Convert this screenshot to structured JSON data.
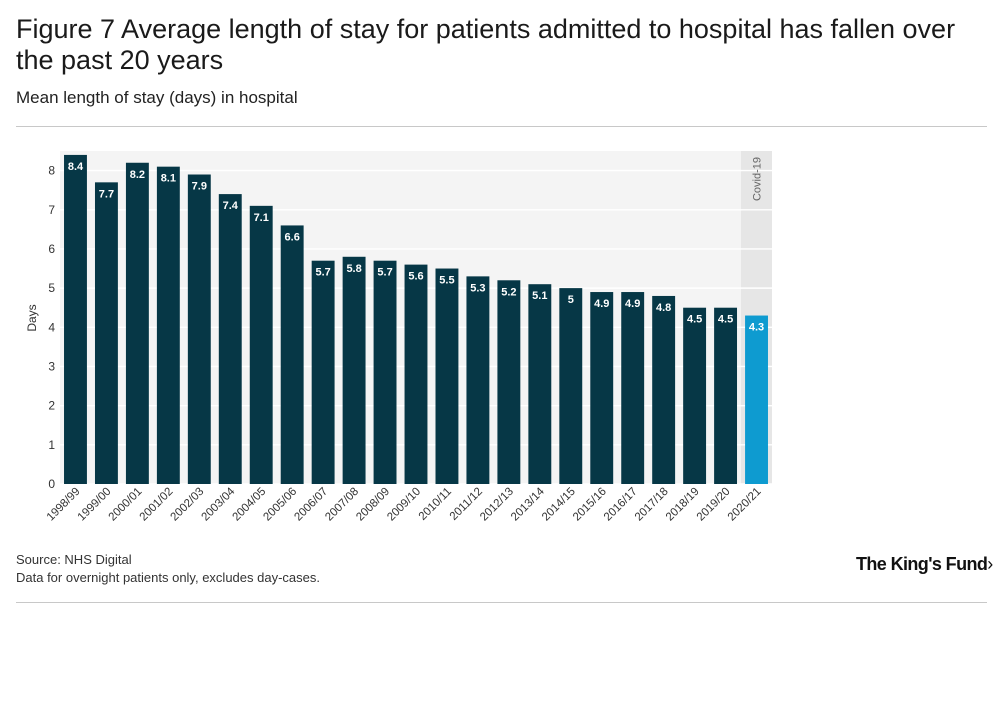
{
  "header": {
    "title": "Figure 7 Average length of stay for patients admitted to hospital has fallen over the past 20 years",
    "subtitle": "Mean length of stay (days) in hospital"
  },
  "footer": {
    "source": "Source: NHS Digital",
    "note": "Data for overnight patients only, excludes day-cases.",
    "logo": "The King's Fund",
    "logo_chevron": "›"
  },
  "colors": {
    "bar": "#063746",
    "highlight_bar": "#0e9bd0",
    "plot_background": "#f4f4f4",
    "covid_band": "#e6e6e6",
    "label_text": "#ffffff"
  },
  "chart_data": {
    "type": "bar",
    "title": "Average length of stay for patients admitted to hospital has fallen over the past 20 years",
    "subtitle": "Mean length of stay (days) in hospital",
    "xlabel": "",
    "ylabel": "Days",
    "ylim": [
      0,
      8.5
    ],
    "yticks": [
      0,
      1,
      2,
      3,
      4,
      5,
      6,
      7,
      8
    ],
    "grid": true,
    "categories": [
      "1998/99",
      "1999/00",
      "2000/01",
      "2001/02",
      "2002/03",
      "2003/04",
      "2004/05",
      "2005/06",
      "2006/07",
      "2007/08",
      "2008/09",
      "2009/10",
      "2010/11",
      "2011/12",
      "2012/13",
      "2013/14",
      "2014/15",
      "2015/16",
      "2016/17",
      "2017/18",
      "2018/19",
      "2019/20",
      "2020/21"
    ],
    "values": [
      8.4,
      7.7,
      8.2,
      8.1,
      7.9,
      7.4,
      7.1,
      6.6,
      5.7,
      5.8,
      5.7,
      5.6,
      5.5,
      5.3,
      5.2,
      5.1,
      5,
      4.9,
      4.9,
      4.8,
      4.5,
      4.5,
      4.3
    ],
    "data_labels": [
      "8.4",
      "7.7",
      "8.2",
      "8.1",
      "7.9",
      "7.4",
      "7.1",
      "6.6",
      "5.7",
      "5.8",
      "5.7",
      "5.6",
      "5.5",
      "5.3",
      "5.2",
      "5.1",
      "5",
      "4.9",
      "4.9",
      "4.8",
      "4.5",
      "4.5",
      "4.3"
    ],
    "highlight": {
      "category": "2020/21",
      "annotation": "Covid-19"
    }
  }
}
